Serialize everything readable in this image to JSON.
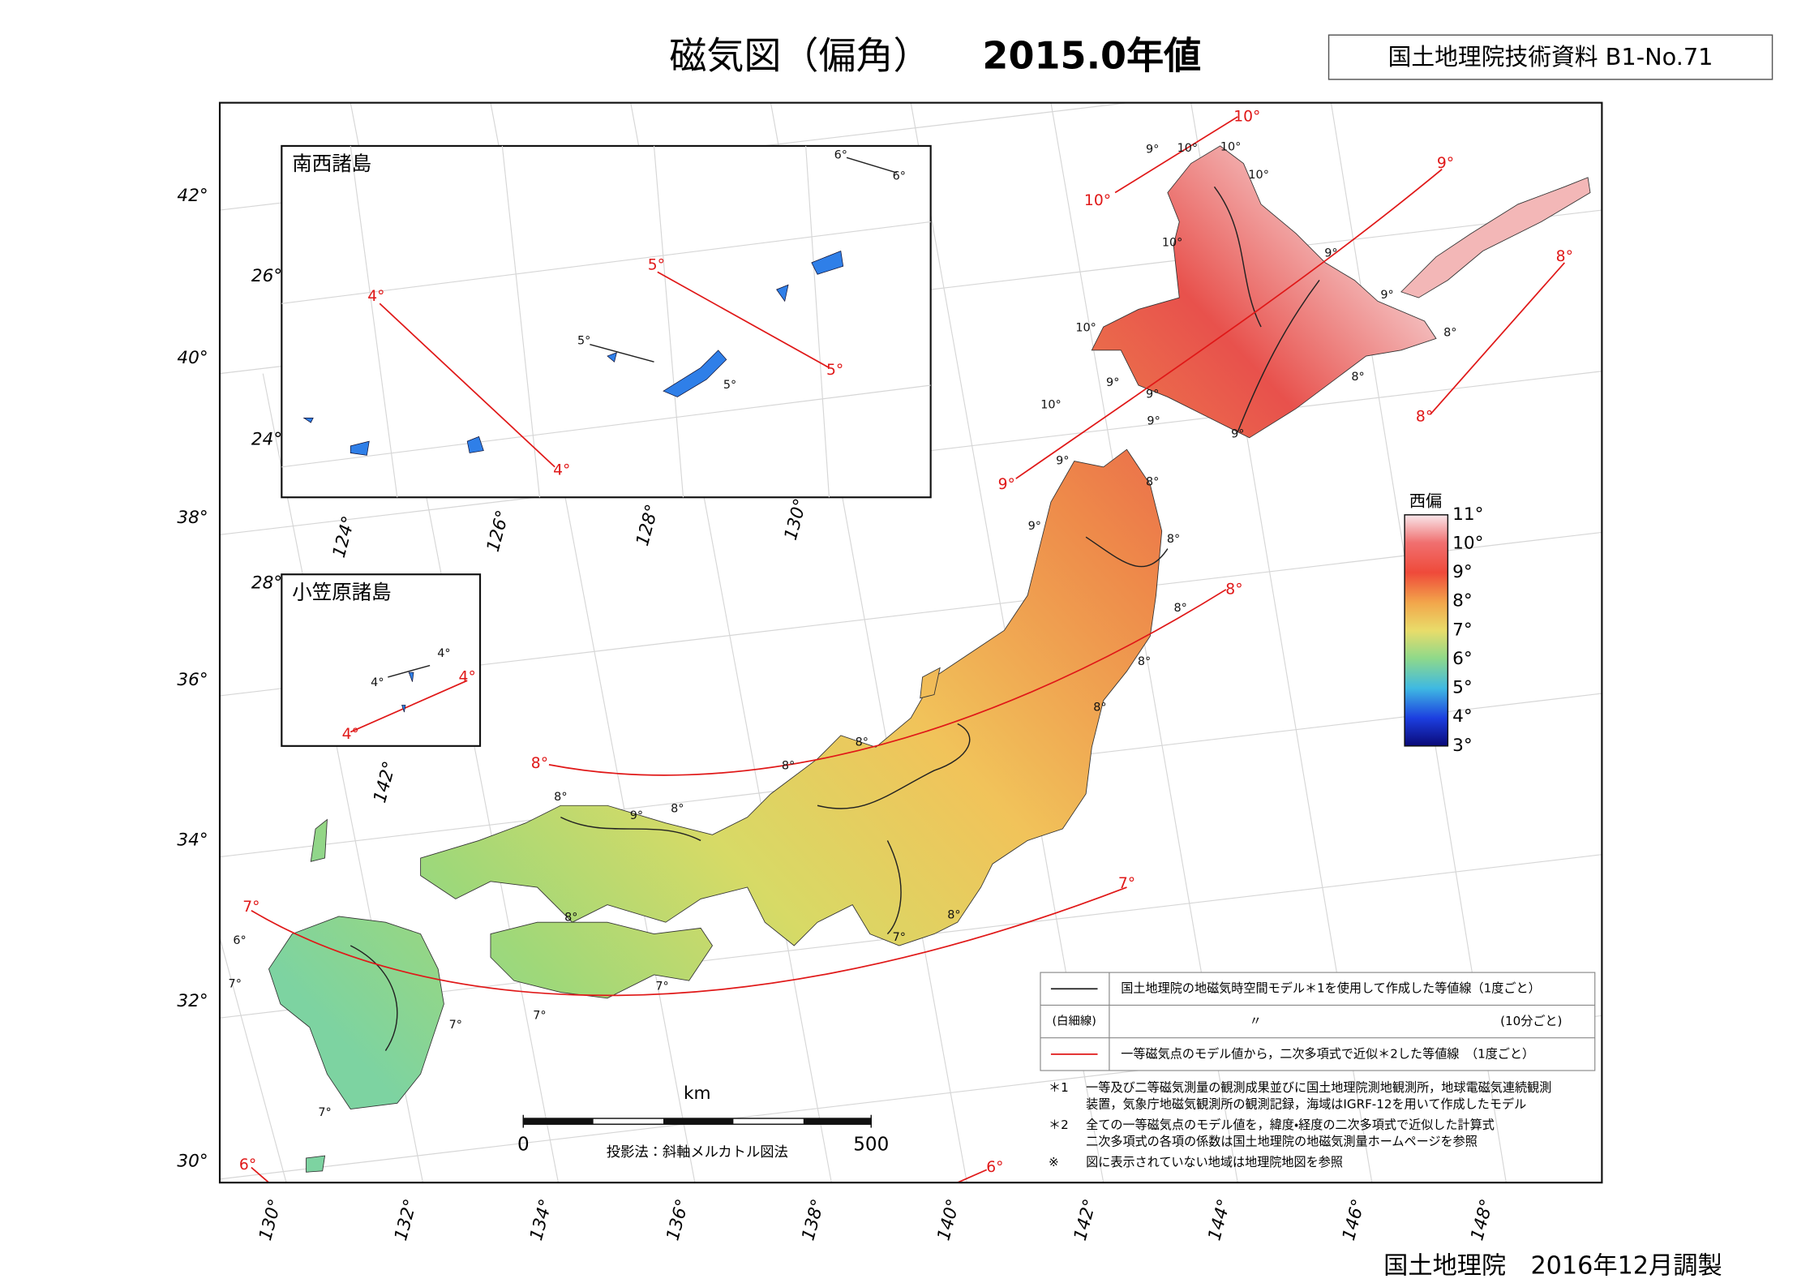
{
  "header": {
    "title": "磁気図（偏角）",
    "epoch": "2015.0年値",
    "doc_id": "国土地理院技術資料  B1-No.71"
  },
  "insets": [
    {
      "title": "南西諸島",
      "lat_labels": [
        "26°",
        "24°"
      ],
      "lon_labels": [
        "124°",
        "126°",
        "128°",
        "130°"
      ]
    },
    {
      "title": "小笠原諸島",
      "lat_labels": [
        "28°"
      ],
      "lon_labels": [
        "142°"
      ]
    }
  ],
  "axes": {
    "lat_labels": [
      "42°",
      "40°",
      "38°",
      "36°",
      "34°",
      "32°",
      "30°"
    ],
    "lon_labels": [
      "130°",
      "132°",
      "134°",
      "136°",
      "138°",
      "140°",
      "142°",
      "144°",
      "146°",
      "148°"
    ]
  },
  "colorbar": {
    "title": "西偏",
    "labels": [
      "11°",
      "10°",
      "9°",
      "8°",
      "7°",
      "6°",
      "5°",
      "4°",
      "3°"
    ]
  },
  "contour_labels": {
    "red": [
      "10°",
      "10°",
      "9°",
      "9°",
      "8°",
      "8°",
      "8°",
      "8°",
      "7°",
      "7°",
      "6°",
      "6°",
      "4°",
      "4°",
      "5°",
      "5°",
      "4°",
      "4°"
    ],
    "black": [
      "9°",
      "10°",
      "10°",
      "10°",
      "10°",
      "9°",
      "9°",
      "8°",
      "8°",
      "10°",
      "9°",
      "9°",
      "10°",
      "9°",
      "9°",
      "9°",
      "8°",
      "9°",
      "8°",
      "8°",
      "8°",
      "8°",
      "8°",
      "8°",
      "8°",
      "9°",
      "8°",
      "8°",
      "7°",
      "8°",
      "7°",
      "7°",
      "7°",
      "7°",
      "6°",
      "7°",
      "6°",
      "6°",
      "5°",
      "5°",
      "4°",
      "4°"
    ]
  },
  "legend": {
    "rows": [
      {
        "key": "",
        "text": "国土地理院の地磁気時空間モデル＊1を使用して作成した等値線（1度ごと）",
        "note": ""
      },
      {
        "key": "(白細線)",
        "text": "〃",
        "note": "(10分ごと)"
      },
      {
        "key": "",
        "text": "一等磁気点のモデル値から，二次多項式で近似＊2した等値線　（1度ごと）",
        "note": ""
      }
    ]
  },
  "footnotes": [
    {
      "mark": "＊1",
      "lines": [
        "一等及び二等磁気測量の観測成果並びに国土地理院測地観測所，地球電磁気連続観測",
        "装置，気象庁地磁気観測所の観測記録，海域はIGRF-12を用いて作成したモデル"
      ]
    },
    {
      "mark": "＊2",
      "lines": [
        "全ての一等磁気点のモデル値を，緯度・経度の二次多項式で近似した計算式",
        "二次多項式の各項の係数は国土地理院の地磁気測量ホームページを参照"
      ]
    },
    {
      "mark": "※",
      "lines": [
        "図に表示されていない地域は地理院地図を参照"
      ]
    }
  ],
  "scale": {
    "unit": "km",
    "ticks": [
      0,
      500
    ],
    "projection": "投影法：斜軸メルカトル図法"
  },
  "footer": "国土地理院　2016年12月調製"
}
